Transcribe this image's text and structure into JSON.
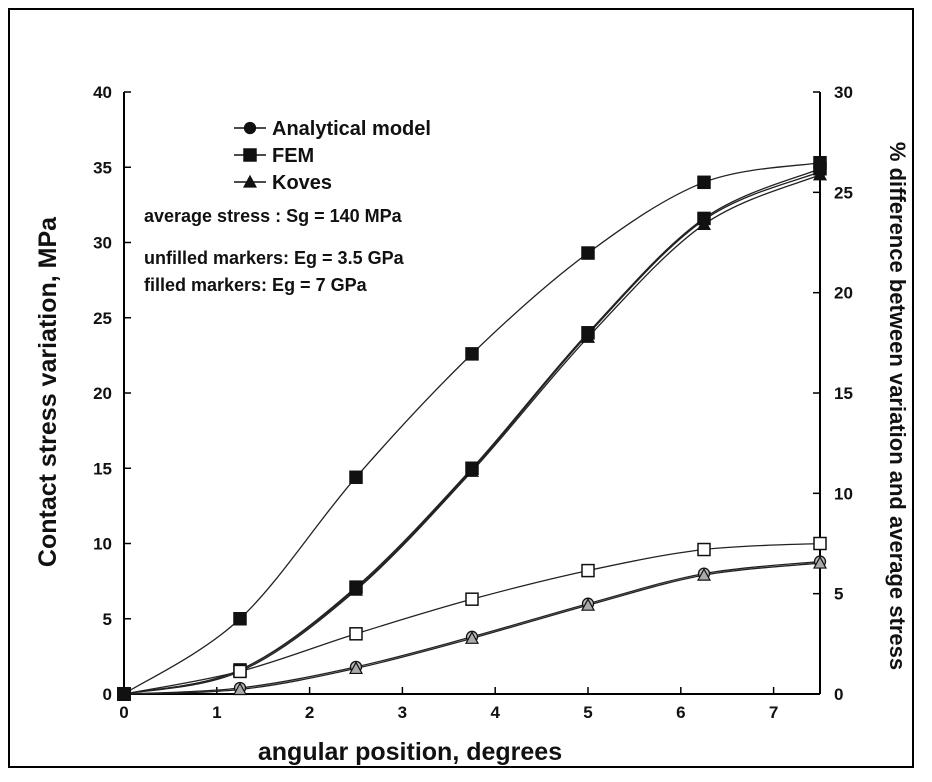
{
  "chart_data": {
    "type": "line",
    "title": "",
    "xlabel": "angular position, degrees",
    "ylabel": "Contact  stress  variation,  MPa",
    "y2label": "%  difference  between  variation  and  average  stress",
    "xlim": [
      0,
      7.5
    ],
    "ylim": [
      0,
      40
    ],
    "y2lim": [
      0,
      30
    ],
    "xticks": [
      "0",
      "1",
      "2",
      "3",
      "4",
      "5",
      "6",
      "7"
    ],
    "yticks": [
      "0",
      "5",
      "10",
      "15",
      "20",
      "25",
      "30",
      "35",
      "40"
    ],
    "y2ticks": [
      "0",
      "5",
      "10",
      "15",
      "20",
      "25",
      "30"
    ],
    "grid": false,
    "legend": {
      "placement": "top-left",
      "entries": [
        {
          "label": "Analytical model",
          "marker": "circle"
        },
        {
          "label": "FEM",
          "marker": "square"
        },
        {
          "label": "Koves",
          "marker": "triangle"
        }
      ]
    },
    "annotations": [
      "average stress : Sg = 140 MPa",
      "unfilled markers: Eg = 3.5 GPa",
      "filled markers: Eg = 7 GPa"
    ],
    "series": [
      {
        "marker": "square",
        "filled": true,
        "axis": "left",
        "x": [
          0,
          1.25,
          2.5,
          3.75,
          5,
          6.25,
          7.5
        ],
        "y": [
          0,
          5.0,
          14.4,
          22.6,
          29.3,
          34.0,
          35.3
        ]
      },
      {
        "marker": "square",
        "filled": true,
        "axis": "left",
        "x": [
          0,
          1.25,
          2.5,
          3.75,
          5,
          6.25,
          7.5
        ],
        "y": [
          0,
          1.6,
          7.1,
          15.0,
          24.0,
          31.6,
          34.9
        ]
      },
      {
        "marker": "circle",
        "filled": true,
        "axis": "left",
        "x": [
          0,
          1.25,
          2.5,
          3.75,
          5,
          6.25,
          7.5
        ],
        "y": [
          0,
          1.6,
          7.0,
          14.9,
          23.9,
          31.5,
          34.7
        ]
      },
      {
        "marker": "triangle",
        "filled": true,
        "axis": "left",
        "x": [
          0,
          1.25,
          2.5,
          3.75,
          5,
          6.25,
          7.5
        ],
        "y": [
          0,
          1.5,
          6.9,
          14.8,
          23.7,
          31.2,
          34.5
        ]
      },
      {
        "marker": "square",
        "filled": false,
        "axis": "left",
        "x": [
          0,
          1.25,
          2.5,
          3.75,
          5,
          6.25,
          7.5
        ],
        "y": [
          0,
          1.5,
          4.0,
          6.3,
          8.2,
          9.6,
          10.0
        ]
      },
      {
        "marker": "circle",
        "filled": false,
        "axis": "left",
        "x": [
          0,
          1.25,
          2.5,
          3.75,
          5,
          6.25,
          7.5
        ],
        "y": [
          0,
          0.4,
          1.8,
          3.8,
          6.0,
          8.0,
          8.8
        ]
      },
      {
        "marker": "triangle",
        "filled": false,
        "axis": "left",
        "x": [
          0,
          1.25,
          2.5,
          3.75,
          5,
          6.25,
          7.5
        ],
        "y": [
          0,
          0.3,
          1.7,
          3.7,
          5.9,
          7.9,
          8.7
        ]
      }
    ]
  }
}
